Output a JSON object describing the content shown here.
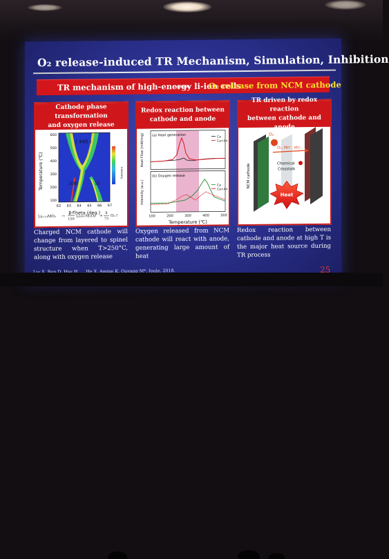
{
  "slide": {
    "title": "O₂ release-induced TR  Mechanism, Simulation, Inhibition",
    "banner": {
      "main": "TR mechanism of high-energy li-ion cells",
      "arrow": "——",
      "sub": "O₂ release from NCM cathode"
    },
    "panels": [
      {
        "header_line1": "Cathode phase transformation",
        "header_line2": "and oxygen release",
        "figure": {
          "ylabel": "Temperature (℃)",
          "xlabel": "2 Theta (deg.)",
          "yticks": [
            "600",
            "500",
            "400",
            "300",
            "200",
            "100"
          ],
          "xticks": [
            "62",
            "63",
            "64",
            "65",
            "66",
            "67"
          ],
          "labels": {
            "peak_440": "( 440 )",
            "peak_108": "108)",
            "peak_11x": "11"
          },
          "colorbar_label": "Intensity",
          "equation": {
            "lhs": "Li₀.₃₃MO₂",
            "arrow": "→",
            "frac1_num": "67",
            "frac1_den": "150",
            "term1": "Li₃/₆₇M₃O₄",
            "plus": "+",
            "frac2_num": "8",
            "frac2_den": "75",
            "term2": "O₂↑"
          }
        },
        "caption": "Charged NCM cathode will change from layered to spinel structure when T>250°C, along with oxygen release"
      },
      {
        "header_line1": "Redox reaction between",
        "header_line2": "cathode and anode",
        "figure": {
          "ylabel_top": "Heat Flow (mW/mg)",
          "ylabel_bottom": "Intensity (a.u.)",
          "label_a": "(a) Heat generation",
          "label_b": "(b) Oxygen release",
          "legend": [
            "Ca",
            "Ca+An"
          ],
          "xlabel": "Temperature (℃)",
          "xticks": [
            "100",
            "200",
            "300",
            "400",
            "500"
          ]
        },
        "caption": "Oxygen released from NCM cathode will react with anode, generating large amount of heat"
      },
      {
        "header_line1": "TR driven by redox reaction",
        "header_line2": "between cathode and anode",
        "figure": {
          "o2_label": "O₂",
          "flow_label": "O₂, Mn⁺, etc.",
          "crosstalk_label_1": "Chemical",
          "crosstalk_label_2": "Crosstalk",
          "cathode_label": "NCM cathode",
          "heat_label": "Heat"
        },
        "caption": "Redox reaction between cathode and anode at high T is the major heat source during TR process"
      }
    ],
    "citation": "Liu X, Ren D, Hsu H, ... He X, Amine K, Ouyang M*, Joule, 2018.",
    "page_number": "25"
  },
  "colors": {
    "slide_bg": "#2a2f8c",
    "banner_red": "#d2161c",
    "banner_yellow": "#ffe22a",
    "page_number": "#e13a3a",
    "highlight_pink": "#e6a6c6"
  }
}
